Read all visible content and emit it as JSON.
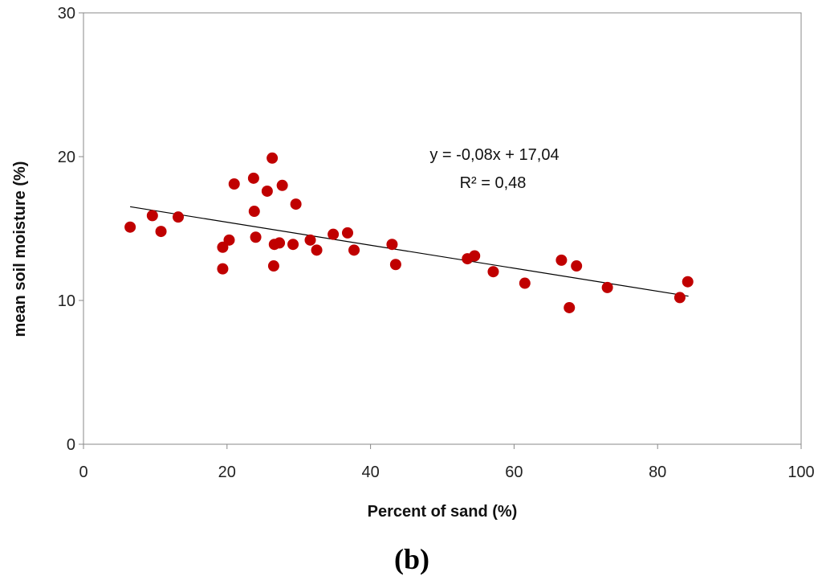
{
  "chart_data": {
    "type": "scatter",
    "title": "",
    "xlabel": "Percent of sand (%)",
    "ylabel": "mean soil moisture (%)",
    "xlim": [
      0,
      100
    ],
    "ylim": [
      0,
      30
    ],
    "xticks": [
      "0",
      "20",
      "40",
      "60",
      "80",
      "100"
    ],
    "yticks": [
      "0",
      "10",
      "20",
      "30"
    ],
    "grid": false,
    "marker_color": "#c00000",
    "trendline": {
      "equation": "y = -0,08x + 17,04",
      "r_squared": "R² = 0,48",
      "slope": -0.08,
      "intercept": 17.04,
      "x_range": [
        6.5,
        84.3
      ]
    },
    "points": [
      {
        "x": 6.5,
        "y": 15.1
      },
      {
        "x": 9.6,
        "y": 15.9
      },
      {
        "x": 10.8,
        "y": 14.8
      },
      {
        "x": 13.2,
        "y": 15.8
      },
      {
        "x": 19.4,
        "y": 13.7
      },
      {
        "x": 19.4,
        "y": 12.2
      },
      {
        "x": 20.3,
        "y": 14.2
      },
      {
        "x": 21.0,
        "y": 18.1
      },
      {
        "x": 23.7,
        "y": 18.5
      },
      {
        "x": 23.8,
        "y": 16.2
      },
      {
        "x": 24.0,
        "y": 14.4
      },
      {
        "x": 25.6,
        "y": 17.6
      },
      {
        "x": 26.3,
        "y": 19.9
      },
      {
        "x": 26.6,
        "y": 13.9
      },
      {
        "x": 26.5,
        "y": 12.4
      },
      {
        "x": 27.3,
        "y": 14.0
      },
      {
        "x": 27.7,
        "y": 18.0
      },
      {
        "x": 29.2,
        "y": 13.9
      },
      {
        "x": 29.6,
        "y": 16.7
      },
      {
        "x": 31.6,
        "y": 14.2
      },
      {
        "x": 32.5,
        "y": 13.5
      },
      {
        "x": 34.8,
        "y": 14.6
      },
      {
        "x": 36.8,
        "y": 14.7
      },
      {
        "x": 37.7,
        "y": 13.5
      },
      {
        "x": 43.0,
        "y": 13.9
      },
      {
        "x": 43.5,
        "y": 12.5
      },
      {
        "x": 53.5,
        "y": 12.9
      },
      {
        "x": 54.5,
        "y": 13.1
      },
      {
        "x": 57.1,
        "y": 12.0
      },
      {
        "x": 61.5,
        "y": 11.2
      },
      {
        "x": 66.6,
        "y": 12.8
      },
      {
        "x": 67.7,
        "y": 9.5
      },
      {
        "x": 68.7,
        "y": 12.4
      },
      {
        "x": 73.0,
        "y": 10.9
      },
      {
        "x": 83.1,
        "y": 10.2
      },
      {
        "x": 84.2,
        "y": 11.3
      }
    ]
  },
  "panel_label": "(b)"
}
